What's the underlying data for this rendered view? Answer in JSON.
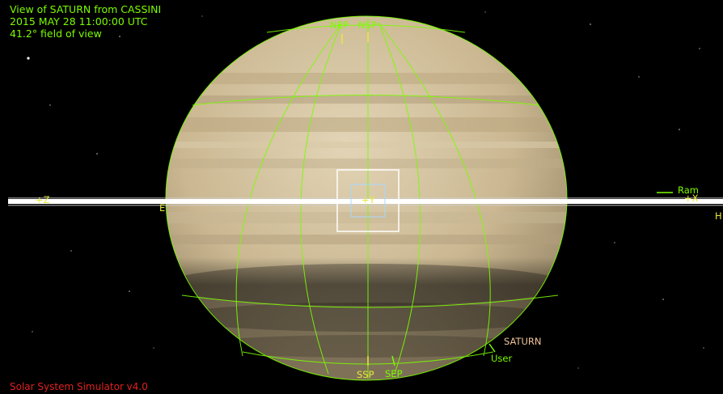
{
  "hud": {
    "view_line": "View of SATURN from CASSINI",
    "date_line": "2015 MAY 28 11:00:00 UTC",
    "fov_line": "41.2° field of view"
  },
  "footer": {
    "app_name": "Solar System Simulator v4.0"
  },
  "labels": {
    "nep": "NEP",
    "nsp": "NSP",
    "sep": "SEP",
    "ssp": "SSP",
    "plus_z": "+Z",
    "e": "E",
    "plus_y": "+Y",
    "ram": "Ram",
    "plus_x": "+X",
    "h": "H",
    "saturn": "SATURN",
    "user": "User"
  },
  "colors": {
    "grid": "#7CFC00",
    "hud_text": "#7CFC00",
    "footer_text": "#e02020",
    "ring": "#ffffff",
    "planet_label": "#f0c49a",
    "axis_marker": "#e8e838"
  }
}
